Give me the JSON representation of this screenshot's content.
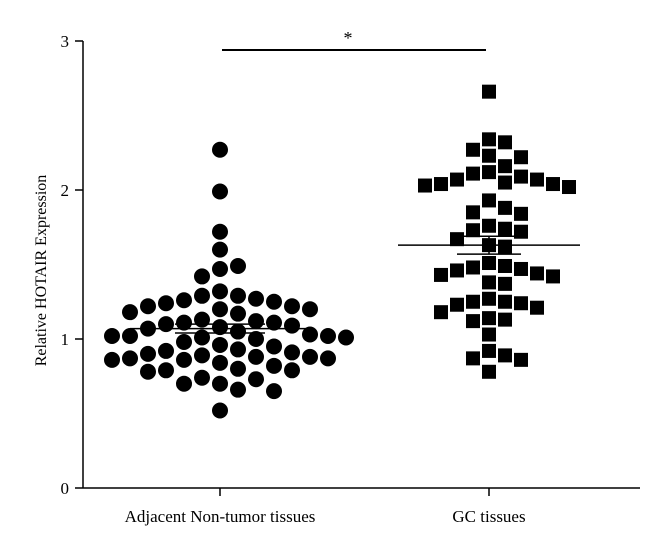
{
  "chart_data": {
    "type": "scatter",
    "subtype": "dot-plot",
    "title": "",
    "xlabel": "",
    "ylabel": "Relative HOTAIR Expression",
    "ylim": [
      0,
      3
    ],
    "yticks": [
      "0",
      "1",
      "2",
      "3"
    ],
    "categories": [
      "Adjacent Non-tumor tissues",
      "GC tissues"
    ],
    "grid": false,
    "legend": "none",
    "colors": {
      "points": "#000000",
      "axes": "#000000",
      "background": "#ffffff"
    },
    "series": [
      {
        "marker": "circle",
        "mean": 1.07,
        "sem": 0.03,
        "values": [
          2.27,
          1.99,
          1.72,
          1.6,
          1.49,
          1.47,
          1.42,
          1.32,
          1.29,
          1.29,
          1.27,
          1.26,
          1.25,
          1.24,
          1.22,
          1.22,
          1.2,
          1.2,
          1.18,
          1.17,
          1.13,
          1.12,
          1.11,
          1.11,
          1.1,
          1.09,
          1.08,
          1.07,
          1.05,
          1.03,
          1.02,
          1.02,
          1.02,
          1.01,
          1.01,
          1.0,
          0.98,
          0.96,
          0.95,
          0.93,
          0.92,
          0.91,
          0.9,
          0.89,
          0.88,
          0.88,
          0.87,
          0.87,
          0.86,
          0.86,
          0.84,
          0.82,
          0.8,
          0.79,
          0.79,
          0.78,
          0.74,
          0.73,
          0.7,
          0.7,
          0.66,
          0.65,
          0.52
        ]
      },
      {
        "marker": "square",
        "mean": 1.63,
        "sem": 0.06,
        "values": [
          2.66,
          2.34,
          2.32,
          2.27,
          2.23,
          2.22,
          2.16,
          2.12,
          2.11,
          2.09,
          2.07,
          2.07,
          2.05,
          2.04,
          2.04,
          2.03,
          2.02,
          1.93,
          1.88,
          1.85,
          1.84,
          1.76,
          1.74,
          1.73,
          1.72,
          1.67,
          1.63,
          1.62,
          1.51,
          1.49,
          1.48,
          1.47,
          1.46,
          1.44,
          1.43,
          1.42,
          1.38,
          1.37,
          1.27,
          1.25,
          1.25,
          1.24,
          1.23,
          1.21,
          1.18,
          1.14,
          1.13,
          1.12,
          1.03,
          0.92,
          0.89,
          0.87,
          0.86,
          0.78
        ]
      }
    ],
    "annotations": [
      {
        "text": "*",
        "between": [
          "Adjacent Non-tumor tissues",
          "GC tissues"
        ]
      }
    ]
  }
}
